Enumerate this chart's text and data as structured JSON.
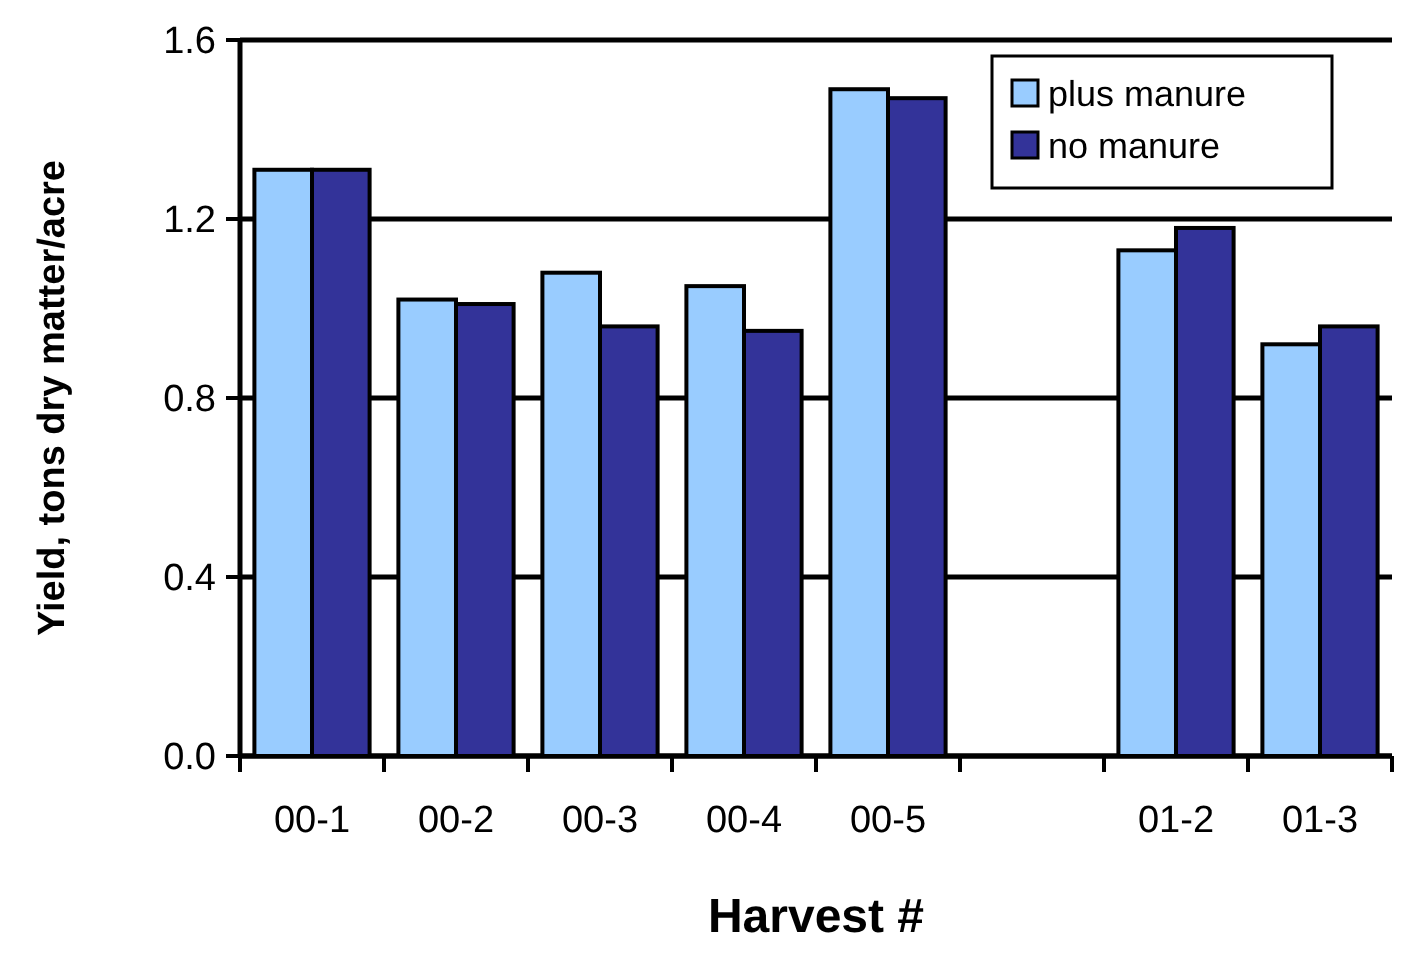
{
  "chart_data": {
    "type": "bar",
    "xlabel": "Harvest #",
    "ylabel": "Yield, tons dry matter/acre",
    "categories": [
      "00-1",
      "00-2",
      "00-3",
      "00-4",
      "00-5",
      null,
      "01-2",
      "01-3"
    ],
    "series": [
      {
        "name": "plus manure",
        "color": "#99ccff",
        "values": [
          1.31,
          1.02,
          1.08,
          1.05,
          1.49,
          null,
          1.13,
          0.92
        ]
      },
      {
        "name": "no manure",
        "color": "#333399",
        "values": [
          1.31,
          1.01,
          0.96,
          0.95,
          1.47,
          null,
          1.18,
          0.96
        ]
      }
    ],
    "ylim": [
      0,
      1.6
    ],
    "yticks": [
      {
        "value": 0,
        "label": "0.0"
      },
      {
        "value": 0.4,
        "label": "0.4"
      },
      {
        "value": 0.8,
        "label": "0.8"
      },
      {
        "value": 1.2,
        "label": "1.2"
      },
      {
        "value": 1.6,
        "label": "1.6"
      }
    ],
    "grid": "y",
    "legend": "top right"
  }
}
